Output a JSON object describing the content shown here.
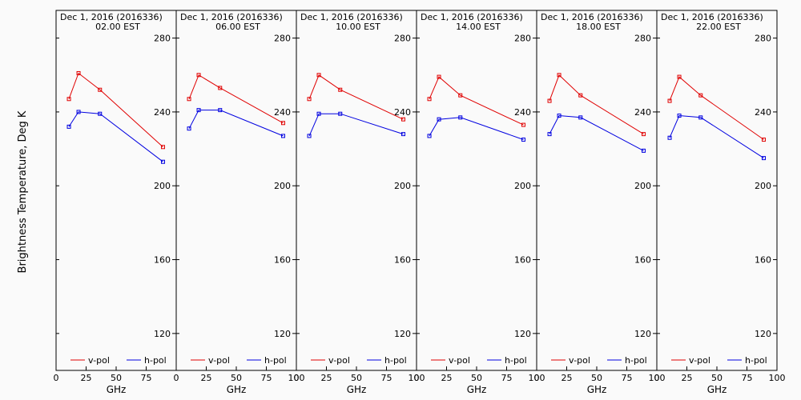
{
  "ylabel": "Brightness Temperature, Deg K",
  "colors": {
    "vpol": "#e00000",
    "hpol": "#0000e0",
    "axis": "#000000",
    "background": "#fafafa"
  },
  "chart_data": [
    {
      "type": "line",
      "title": "Dec  1, 2016 (2016336)",
      "subtitle": "02.00 EST",
      "xlabel": "GHz",
      "x": [
        10.7,
        18.7,
        36.5,
        89
      ],
      "xlim": [
        0,
        100
      ],
      "xticks": [
        0,
        25,
        50,
        75
      ],
      "ylim": [
        100,
        295
      ],
      "yticks": [
        120,
        160,
        200,
        240,
        280
      ],
      "series": [
        {
          "name": "v-pol",
          "values": [
            247,
            261,
            252,
            221
          ]
        },
        {
          "name": "h-pol",
          "values": [
            232,
            240,
            239,
            213
          ]
        }
      ],
      "legend_position": "bottom"
    },
    {
      "type": "line",
      "title": "Dec  1, 2016 (2016336)",
      "subtitle": "06.00 EST",
      "xlabel": "GHz",
      "x": [
        10.7,
        18.7,
        36.5,
        89
      ],
      "xlim": [
        0,
        100
      ],
      "xticks": [
        0,
        25,
        50,
        75,
        100
      ],
      "ylim": [
        100,
        295
      ],
      "yticks": [
        120,
        160,
        200,
        240,
        280
      ],
      "series": [
        {
          "name": "v-pol",
          "values": [
            247,
            260,
            253,
            234
          ]
        },
        {
          "name": "h-pol",
          "values": [
            231,
            241,
            241,
            227
          ]
        }
      ],
      "legend_position": "bottom"
    },
    {
      "type": "line",
      "title": "Dec  1, 2016 (2016336)",
      "subtitle": "10.00 EST",
      "xlabel": "GHz",
      "x": [
        10.7,
        18.7,
        36.5,
        89
      ],
      "xlim": [
        0,
        100
      ],
      "xticks": [
        0,
        25,
        50,
        75,
        100
      ],
      "ylim": [
        100,
        295
      ],
      "yticks": [
        120,
        160,
        200,
        240,
        280
      ],
      "series": [
        {
          "name": "v-pol",
          "values": [
            247,
            260,
            252,
            236
          ]
        },
        {
          "name": "h-pol",
          "values": [
            227,
            239,
            239,
            228
          ]
        }
      ],
      "legend_position": "bottom"
    },
    {
      "type": "line",
      "title": "Dec  1, 2016 (2016336)",
      "subtitle": "14.00 EST",
      "xlabel": "GHz",
      "x": [
        10.7,
        18.7,
        36.5,
        89
      ],
      "xlim": [
        0,
        100
      ],
      "xticks": [
        0,
        25,
        50,
        75,
        100
      ],
      "ylim": [
        100,
        295
      ],
      "yticks": [
        120,
        160,
        200,
        240,
        280
      ],
      "series": [
        {
          "name": "v-pol",
          "values": [
            247,
            259,
            249,
            233
          ]
        },
        {
          "name": "h-pol",
          "values": [
            227,
            236,
            237,
            225
          ]
        }
      ],
      "legend_position": "bottom"
    },
    {
      "type": "line",
      "title": "Dec  1, 2016 (2016336)",
      "subtitle": "18.00 EST",
      "xlabel": "GHz",
      "x": [
        10.7,
        18.7,
        36.5,
        89
      ],
      "xlim": [
        0,
        100
      ],
      "xticks": [
        0,
        25,
        50,
        75,
        100
      ],
      "ylim": [
        100,
        295
      ],
      "yticks": [
        120,
        160,
        200,
        240,
        280
      ],
      "series": [
        {
          "name": "v-pol",
          "values": [
            246,
            260,
            249,
            228
          ]
        },
        {
          "name": "h-pol",
          "values": [
            228,
            238,
            237,
            219
          ]
        }
      ],
      "legend_position": "bottom"
    },
    {
      "type": "line",
      "title": "Dec  1, 2016 (2016336)",
      "subtitle": "22.00 EST",
      "xlabel": "GHz",
      "x": [
        10.7,
        18.7,
        36.5,
        89
      ],
      "xlim": [
        0,
        100
      ],
      "xticks": [
        0,
        25,
        50,
        75,
        100
      ],
      "ylim": [
        100,
        295
      ],
      "yticks": [
        120,
        160,
        200,
        240,
        280
      ],
      "series": [
        {
          "name": "v-pol",
          "values": [
            246,
            259,
            249,
            225
          ]
        },
        {
          "name": "h-pol",
          "values": [
            226,
            238,
            237,
            215
          ]
        }
      ],
      "legend_position": "bottom"
    }
  ]
}
